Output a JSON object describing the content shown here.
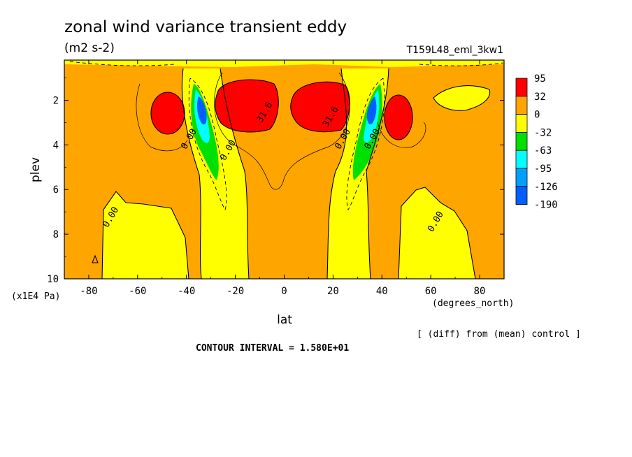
{
  "chart_data": {
    "type": "contour",
    "title": "zonal wind variance transient eddy",
    "units": "(m2 s-2)",
    "experiment": "T159L48_eml_3kw1",
    "xlabel": "lat",
    "xunits": "(degrees_north)",
    "ylabel": "plev",
    "yunits": "(x1E4 Pa)",
    "x_ticks": [
      -80,
      -60,
      -40,
      -20,
      0,
      20,
      40,
      60,
      80
    ],
    "y_ticks": [
      2,
      4,
      6,
      8,
      10
    ],
    "xlim": [
      -90,
      90
    ],
    "ylim": [
      10,
      0.2
    ],
    "legend_levels": [
      "95",
      "32",
      "0",
      "-32",
      "-63",
      "-95",
      "-126",
      "-190"
    ],
    "legend_colors": [
      "#ff0000",
      "#ffa500",
      "#ffff00",
      "#00e000",
      "#00ffff",
      "#00a0ff",
      "#0060ff"
    ],
    "contour_labels": [
      {
        "text": "31.6",
        "lat": -7,
        "plev": 2.6
      },
      {
        "text": "31.6",
        "lat": 20,
        "plev": 2.8
      },
      {
        "text": "0.00",
        "lat": -38,
        "plev": 3.8
      },
      {
        "text": "0.00",
        "lat": -22,
        "plev": 4.3
      },
      {
        "text": "0.00",
        "lat": 25,
        "plev": 3.8
      },
      {
        "text": "0.00",
        "lat": 37,
        "plev": 3.8
      },
      {
        "text": "0.00",
        "lat": -70,
        "plev": 7.3
      },
      {
        "text": "0.00",
        "lat": 63,
        "plev": 7.5
      }
    ],
    "footer_note": "[ (diff) from (mean) control ]",
    "contour_interval": "CONTOUR INTERVAL = 1.580E+01"
  }
}
